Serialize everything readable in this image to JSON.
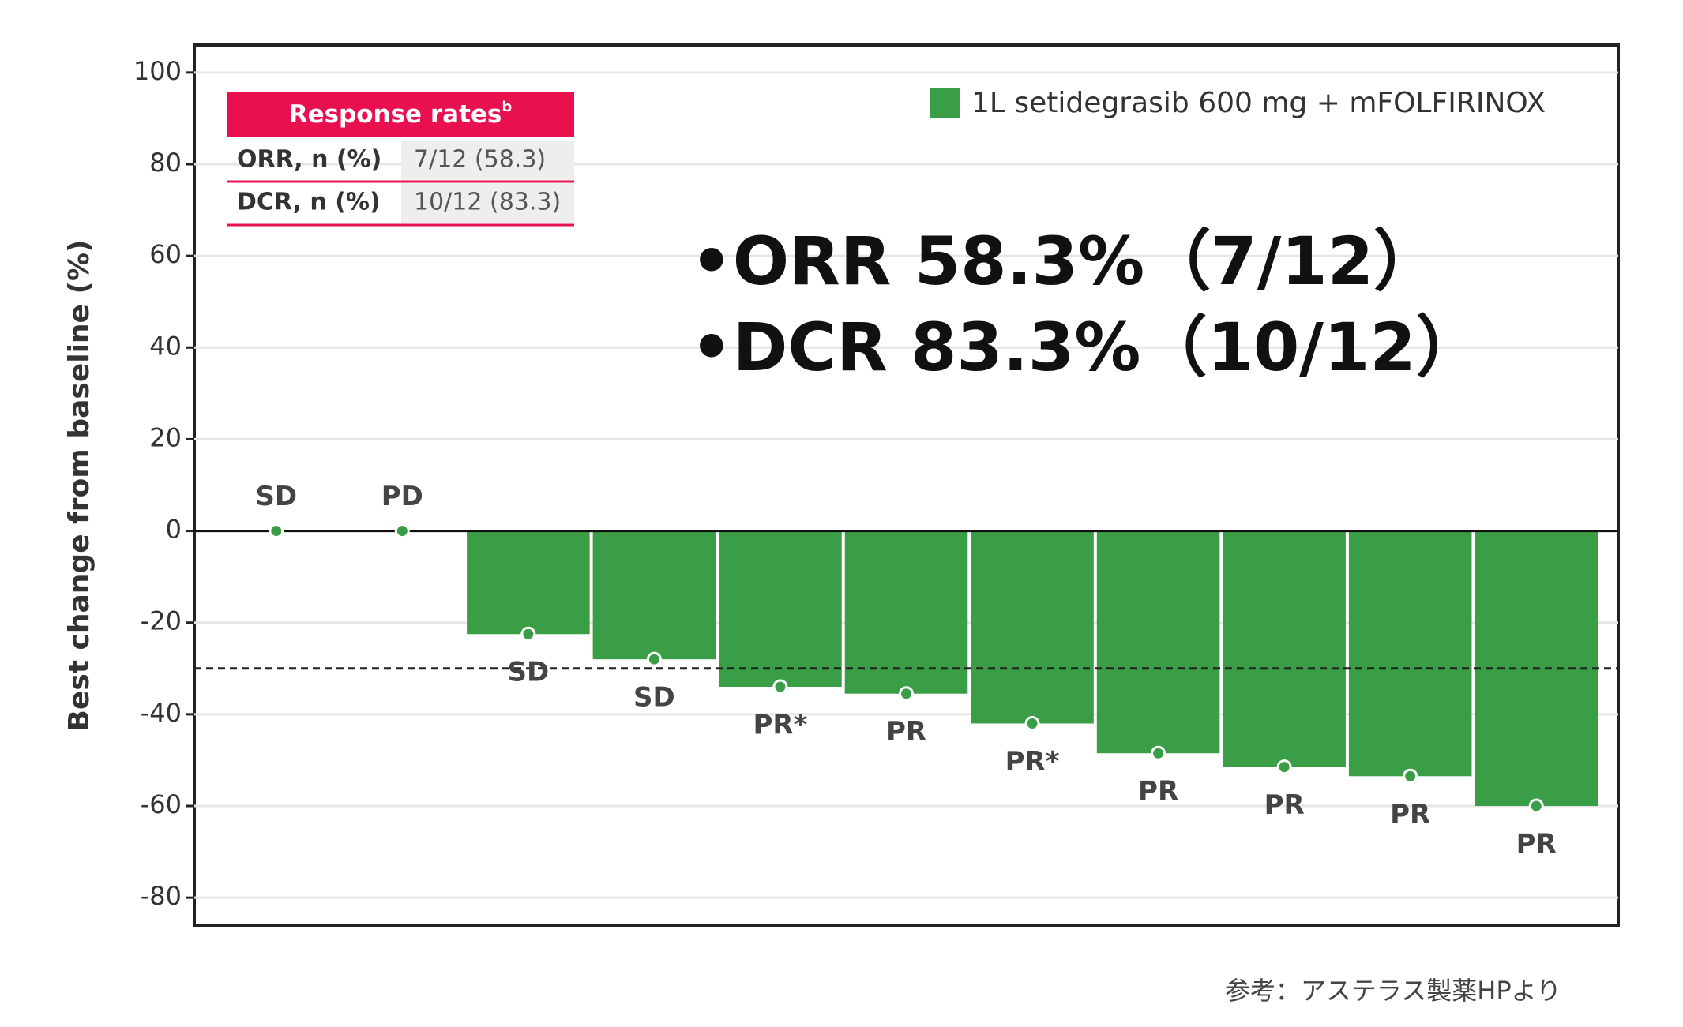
{
  "chart_data": {
    "type": "bar",
    "y_label": "Best change from baseline (%)",
    "categories": [
      null,
      null,
      null,
      null,
      null,
      null,
      null,
      null,
      null,
      null,
      null
    ],
    "series": [
      {
        "name": "1L setidegrasib 600 mg + mFOLFIRINOX",
        "color": "#3a9e47",
        "values": [
          0,
          0,
          -22.5,
          -28,
          -34,
          -35.5,
          -42,
          -48.5,
          -51.5,
          -53.5,
          -60
        ]
      }
    ],
    "responses": [
      "SD",
      "PD",
      "SD",
      "SD",
      "PR*",
      "PR",
      "PR*",
      "PR",
      "PR",
      "PR",
      "PR"
    ],
    "reference_line": -30,
    "ylim": [
      -86,
      106
    ],
    "yticks": [
      100,
      80,
      60,
      40,
      20,
      0,
      -20,
      -40,
      -60,
      -80
    ],
    "grid": true,
    "legend": "top-right"
  },
  "response_table": {
    "title": "Response rates",
    "title_note": "b",
    "rows": [
      [
        "ORR, n (%)",
        "7/12 (58.3)"
      ],
      [
        "DCR, n (%)",
        "10/12 (83.3)"
      ]
    ]
  },
  "highlights": [
    "•ORR 58.3%（7/12）",
    "•DCR 83.3%（10/12）"
  ],
  "source": "参考：アステラス製薬HPより"
}
